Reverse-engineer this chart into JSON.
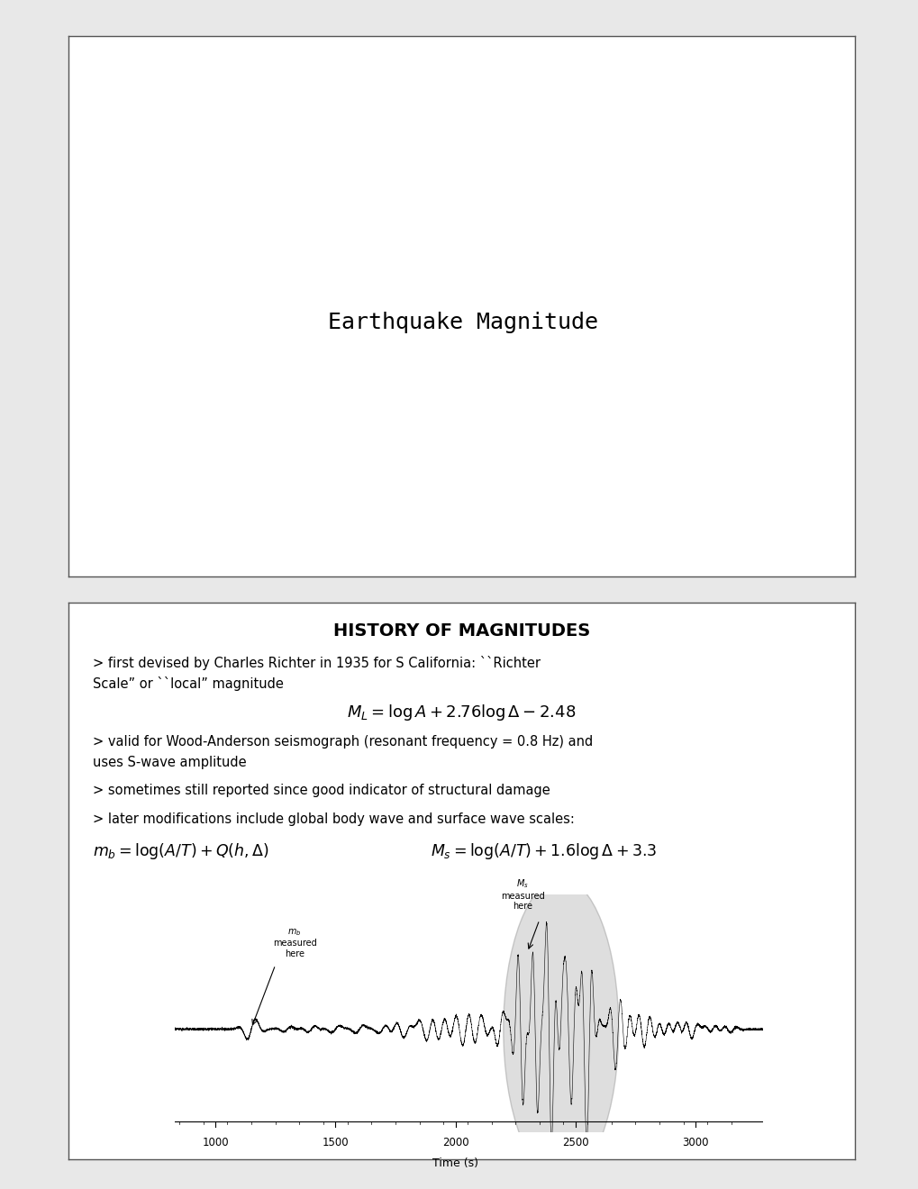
{
  "bg_color": "#e8e8e8",
  "panel_bg": "#ffffff",
  "panel1_title": "Earthquake Magnitude",
  "panel2_title": "HISTORY OF MAGNITUDES",
  "panel2_b1_line1": "> first devised by Charles Richter in 1935 for S California: ``Richter",
  "panel2_b1_line2": "Scale” or ``local” magnitude",
  "panel2_formula1": "$M_L = \\log A + 2.76\\log\\Delta - 2.48$",
  "panel2_b2_line1": "> valid for Wood-Anderson seismograph (resonant frequency = 0.8 Hz) and",
  "panel2_b2_line2": "uses S-wave amplitude",
  "panel2_b3": "> sometimes still reported since good indicator of structural damage",
  "panel2_b4": "> later modifications include global body wave and surface wave scales:",
  "panel2_formula2_left": "$m_b = \\log(A/T) + Q(h, \\Delta)$",
  "panel2_formula2_right": "$M_s = \\log(A/T) + 1.6\\log\\Delta + 3.3$",
  "xlabel": "Time (s)",
  "tick_labels": [
    "1000",
    "1500",
    "2000",
    "2500",
    "3000"
  ],
  "tick_values": [
    1000,
    1500,
    2000,
    2500,
    3000
  ]
}
